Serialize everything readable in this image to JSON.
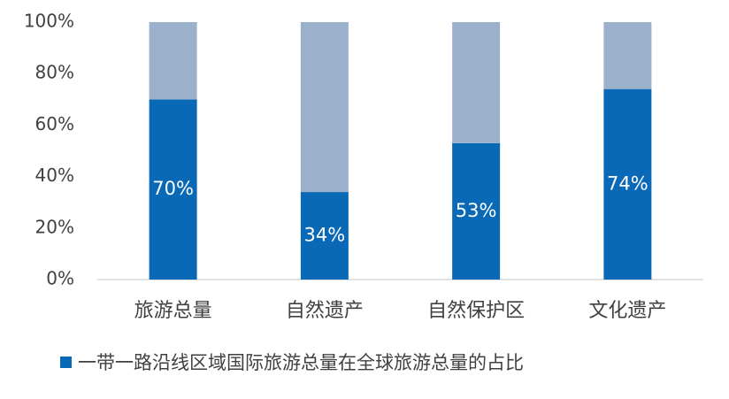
{
  "chart_data": {
    "type": "stacked_bar",
    "categories": [
      "旅游总量",
      "自然遗产",
      "自然保护区",
      "文化遗产"
    ],
    "series": [
      {
        "name": "一带一路沿线区域国际旅游总量在全球旅游总量的占比",
        "color": "#0a69b7",
        "values": [
          70,
          34,
          53,
          74
        ],
        "value_labels": [
          "70%",
          "34%",
          "53%",
          "74%"
        ]
      },
      {
        "color": "#9bb1cb",
        "values": [
          30,
          66,
          47,
          26
        ]
      }
    ],
    "ylim": [
      0,
      100
    ],
    "yticks": [
      {
        "value": 0,
        "label": "0%"
      },
      {
        "value": 20,
        "label": "20%"
      },
      {
        "value": 40,
        "label": "40%"
      },
      {
        "value": 60,
        "label": "60%"
      },
      {
        "value": 80,
        "label": "80%"
      },
      {
        "value": 100,
        "label": "100%"
      }
    ],
    "grid": false,
    "legend": "bottom"
  }
}
